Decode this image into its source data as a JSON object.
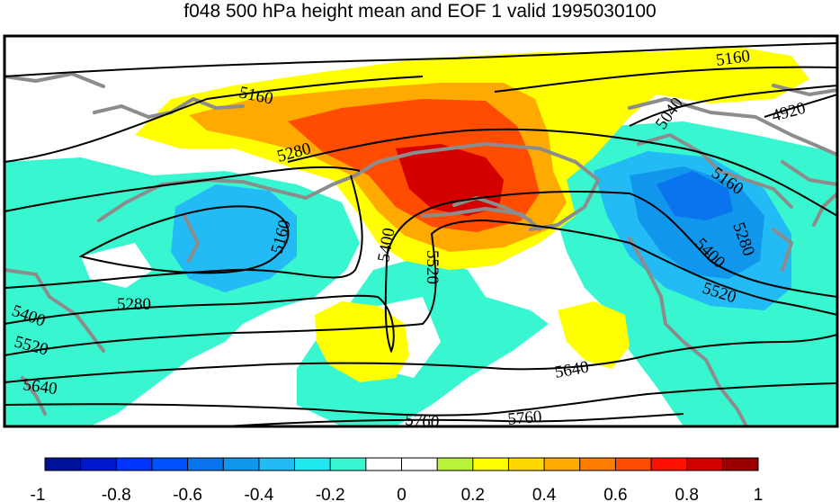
{
  "title": "f048 500 hPa height mean and EOF 1 valid 1995030100",
  "contour_labels": [
    "5160",
    "5160",
    "5040",
    "4920",
    "5280",
    "5160",
    "5160",
    "5280",
    "5400",
    "5400",
    "5520",
    "5520",
    "5280",
    "5400",
    "5520",
    "5640",
    "5640",
    "5760",
    "5760"
  ],
  "colorbar": {
    "colors": [
      "#00129a",
      "#0018cc",
      "#0034ff",
      "#0052ff",
      "#0a74ee",
      "#1096ec",
      "#22bbf5",
      "#20e8ee",
      "#38f7d0",
      "#ffffff",
      "#ffffff",
      "#b8f23a",
      "#ffff00",
      "#ffd800",
      "#ffaa00",
      "#ff7e00",
      "#ff4c00",
      "#ff1000",
      "#d40000",
      "#9a0000"
    ],
    "tick_labels": [
      "-1",
      "-0.8",
      "-0.6",
      "-0.4",
      "-0.2",
      "0",
      "0.2",
      "0.4",
      "0.6",
      "0.8",
      "1"
    ]
  }
}
